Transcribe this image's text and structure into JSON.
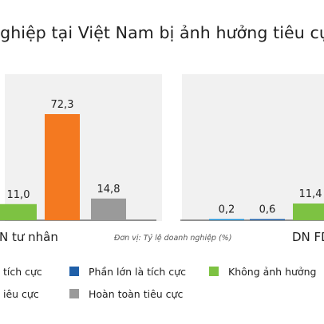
{
  "title": "nghiệp tại Việt Nam bị ảnh hưởng tiêu cực",
  "unit_note": "Đơn vị: Tỷ lệ doanh nghiệp (%)",
  "colors": {
    "rat_tich_cuc": "#1a8fd6",
    "phan_lon_tich_cuc": "#1f5fa8",
    "khong_anh_huong": "#7dc242",
    "phan_lon_tieu_cuc": "#f47920",
    "hoan_toan_tieu_cuc": "#9a9a9a"
  },
  "chart_data": {
    "type": "bar",
    "categories": [
      "N tư nhân",
      "DN FD"
    ],
    "series": [
      {
        "name": "tích cực",
        "key": "rat_tich_cuc",
        "values": [
          null,
          null
        ]
      },
      {
        "name": "Phần lớn là tích cực",
        "key": "phan_lon_tich_cuc",
        "values": [
          null,
          0.6
        ]
      },
      {
        "name": "Không ảnh hưởng",
        "key": "khong_anh_huong",
        "values": [
          11.0,
          11.4
        ]
      },
      {
        "name": "tiêu cực",
        "key": "phan_lon_tieu_cuc",
        "values": [
          72.3,
          null
        ]
      },
      {
        "name": "Hoàn toàn tiêu cực",
        "key": "hoan_toan_tieu_cuc",
        "values": [
          14.8,
          null
        ]
      }
    ],
    "extra_labels": [
      {
        "category": "DN FD",
        "value": 0.2,
        "series_key": "rat_tich_cuc"
      }
    ],
    "value_labels": {
      "n_tu_nhan": [
        "11,0",
        "72,3",
        "14,8"
      ],
      "dn_fd": [
        "0,2",
        "0,6",
        "11,4"
      ]
    },
    "ylim": [
      0,
      80
    ],
    "grid": false,
    "legend_position": "bottom"
  },
  "legend": [
    {
      "label": "tích cực",
      "color_key": "rat_tich_cuc"
    },
    {
      "label": "Phần lớn là tích cực",
      "color_key": "phan_lon_tich_cuc"
    },
    {
      "label": "Không ảnh hưởng",
      "color_key": "khong_anh_huong"
    },
    {
      "label": "iêu cực",
      "color_key": "phan_lon_tieu_cuc"
    },
    {
      "label": "Hoàn toàn tiêu cực",
      "color_key": "hoan_toan_tieu_cuc"
    }
  ]
}
